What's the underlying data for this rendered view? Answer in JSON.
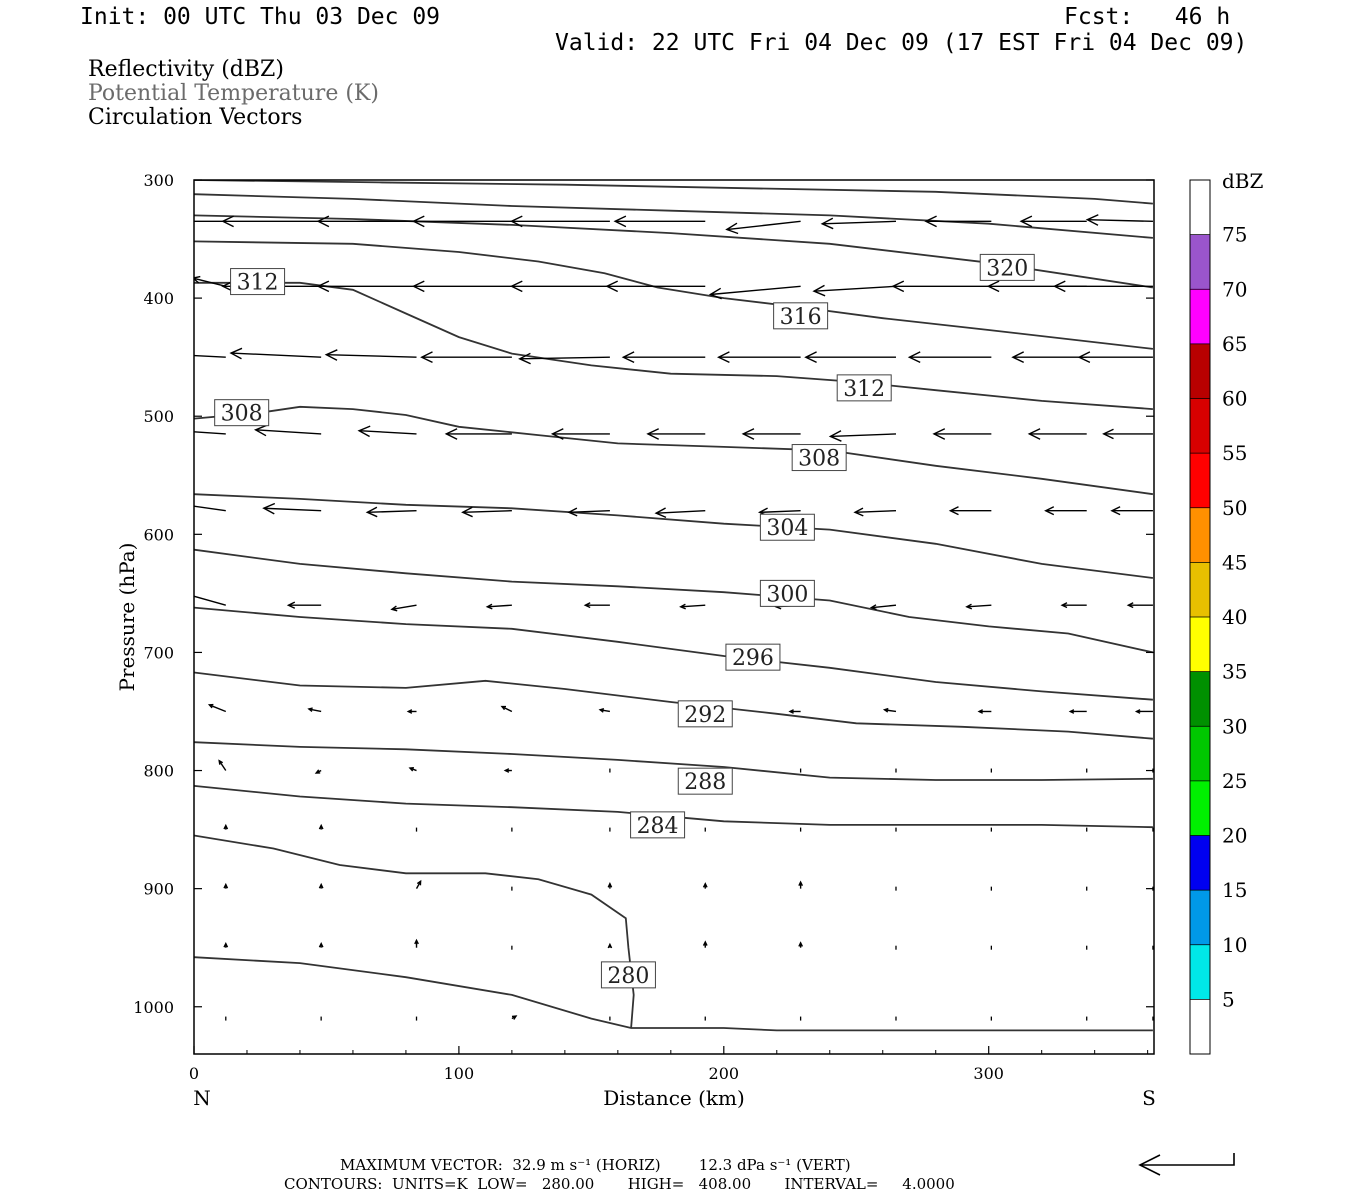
{
  "header": {
    "init": "Init: 00 UTC Thu 03 Dec 09",
    "fcst": "Fcst:   46 h",
    "valid": "Valid: 22 UTC Fri 04 Dec 09 (17 EST Fri 04 Dec 09)"
  },
  "fields": [
    "Reflectivity (dBZ)",
    "Potential Temperature (K)",
    "Circulation Vectors"
  ],
  "footer": {
    "vector_line": "MAXIMUM VECTOR:  32.9 m s⁻¹ (HORIZ)        12.3 dPa s⁻¹ (VERT)",
    "contour_line": "CONTOURS:  UNITS=K  LOW=   280.00       HIGH=   408.00       INTERVAL=     4.0000"
  },
  "chart_data": {
    "type": "contour",
    "xlabel": "Distance (km)",
    "ylabel": "Pressure (hPa)",
    "xlim": [
      0,
      362
    ],
    "ylim": [
      1040,
      300
    ],
    "x_ticks": [
      0,
      100,
      200,
      300
    ],
    "y_ticks": [
      300,
      400,
      500,
      600,
      700,
      800,
      900,
      1000
    ],
    "x_end_labels": {
      "left": "N",
      "right": "S"
    },
    "colorbar": {
      "unit": "dBZ",
      "levels": [
        5,
        10,
        15,
        20,
        25,
        30,
        35,
        40,
        45,
        50,
        55,
        60,
        65,
        70,
        75
      ],
      "colors": [
        "#ffffff",
        "#00e8e8",
        "#0099e8",
        "#0000f0",
        "#00f000",
        "#00c800",
        "#009000",
        "#ffff00",
        "#e8c000",
        "#ff9000",
        "#ff0000",
        "#d80000",
        "#b80000",
        "#ff00ff",
        "#9a55cc",
        "#ffffff"
      ]
    },
    "contours": [
      {
        "label": "280",
        "points": [
          [
            0,
            958
          ],
          [
            40,
            963
          ],
          [
            80,
            975
          ],
          [
            120,
            990
          ],
          [
            150,
            1010
          ],
          [
            165,
            1018
          ],
          [
            200,
            1018
          ],
          [
            220,
            1020
          ],
          [
            362,
            1020
          ]
        ]
      },
      {
        "label": "280",
        "points": [
          [
            165,
            1018
          ],
          [
            166,
            990
          ],
          [
            164,
            950
          ],
          [
            163,
            925
          ],
          [
            150,
            905
          ],
          [
            130,
            892
          ],
          [
            110,
            887
          ],
          [
            80,
            887
          ],
          [
            55,
            880
          ],
          [
            30,
            866
          ],
          [
            0,
            855
          ]
        ]
      },
      {
        "label": "284",
        "points": [
          [
            0,
            813
          ],
          [
            40,
            822
          ],
          [
            80,
            828
          ],
          [
            120,
            831
          ],
          [
            160,
            835
          ],
          [
            200,
            843
          ],
          [
            240,
            846
          ],
          [
            280,
            846
          ],
          [
            320,
            846
          ],
          [
            362,
            848
          ]
        ]
      },
      {
        "label": "288",
        "points": [
          [
            0,
            776
          ],
          [
            40,
            780
          ],
          [
            80,
            782
          ],
          [
            120,
            786
          ],
          [
            160,
            791
          ],
          [
            200,
            797
          ],
          [
            240,
            806
          ],
          [
            280,
            808
          ],
          [
            320,
            808
          ],
          [
            362,
            807
          ]
        ]
      },
      {
        "label": "292",
        "points": [
          [
            0,
            717
          ],
          [
            40,
            728
          ],
          [
            80,
            730
          ],
          [
            110,
            724
          ],
          [
            140,
            731
          ],
          [
            180,
            742
          ],
          [
            220,
            752
          ],
          [
            250,
            760
          ],
          [
            290,
            763
          ],
          [
            330,
            767
          ],
          [
            362,
            773
          ]
        ]
      },
      {
        "label": "296",
        "points": [
          [
            0,
            662
          ],
          [
            40,
            670
          ],
          [
            80,
            676
          ],
          [
            120,
            680
          ],
          [
            160,
            691
          ],
          [
            200,
            703
          ],
          [
            240,
            713
          ],
          [
            280,
            725
          ],
          [
            320,
            733
          ],
          [
            362,
            740
          ]
        ]
      },
      {
        "label": "300",
        "points": [
          [
            0,
            613
          ],
          [
            40,
            625
          ],
          [
            80,
            633
          ],
          [
            120,
            640
          ],
          [
            160,
            644
          ],
          [
            200,
            649
          ],
          [
            240,
            656
          ],
          [
            270,
            670
          ],
          [
            300,
            678
          ],
          [
            330,
            684
          ],
          [
            362,
            700
          ]
        ]
      },
      {
        "label": "304",
        "points": [
          [
            0,
            566
          ],
          [
            40,
            570
          ],
          [
            80,
            575
          ],
          [
            120,
            578
          ],
          [
            160,
            584
          ],
          [
            200,
            591
          ],
          [
            240,
            596
          ],
          [
            280,
            608
          ],
          [
            320,
            625
          ],
          [
            362,
            637
          ]
        ]
      },
      {
        "label": "308",
        "points": [
          [
            0,
            502
          ],
          [
            25,
            497
          ],
          [
            40,
            492
          ],
          [
            60,
            494
          ],
          [
            80,
            499
          ],
          [
            100,
            509
          ],
          [
            130,
            516
          ],
          [
            160,
            523
          ],
          [
            200,
            526
          ],
          [
            240,
            529
          ],
          [
            280,
            542
          ],
          [
            320,
            553
          ],
          [
            362,
            566
          ]
        ]
      },
      {
        "label": "312",
        "points": [
          [
            0,
            387
          ],
          [
            40,
            387
          ],
          [
            60,
            393
          ],
          [
            80,
            413
          ],
          [
            100,
            433
          ],
          [
            120,
            447
          ],
          [
            150,
            457
          ],
          [
            180,
            464
          ],
          [
            220,
            466
          ],
          [
            250,
            471
          ],
          [
            280,
            478
          ],
          [
            320,
            487
          ],
          [
            362,
            494
          ]
        ]
      },
      {
        "label": "316",
        "points": [
          [
            0,
            352
          ],
          [
            60,
            354
          ],
          [
            100,
            361
          ],
          [
            130,
            369
          ],
          [
            155,
            379
          ],
          [
            175,
            391
          ],
          [
            200,
            400
          ],
          [
            230,
            408
          ],
          [
            260,
            417
          ],
          [
            300,
            427
          ],
          [
            362,
            443
          ]
        ]
      },
      {
        "label": "320",
        "points": [
          [
            0,
            330
          ],
          [
            60,
            333
          ],
          [
            120,
            338
          ],
          [
            180,
            345
          ],
          [
            240,
            354
          ],
          [
            300,
            370
          ],
          [
            362,
            391
          ]
        ]
      },
      {
        "label": "",
        "points": [
          [
            0,
            312
          ],
          [
            60,
            316
          ],
          [
            120,
            322
          ],
          [
            180,
            326
          ],
          [
            240,
            330
          ],
          [
            300,
            337
          ],
          [
            362,
            349
          ]
        ]
      },
      {
        "label": "",
        "points": [
          [
            0,
            300
          ],
          [
            70,
            302
          ],
          [
            140,
            304
          ],
          [
            210,
            307
          ],
          [
            280,
            310
          ],
          [
            340,
            316
          ],
          [
            362,
            320
          ]
        ]
      }
    ],
    "contour_labels": [
      {
        "text": "312",
        "x": 24,
        "p": 386
      },
      {
        "text": "316",
        "x": 229,
        "p": 415
      },
      {
        "text": "320",
        "x": 307,
        "p": 374
      },
      {
        "text": "312",
        "x": 253,
        "p": 476
      },
      {
        "text": "308",
        "x": 18,
        "p": 497
      },
      {
        "text": "308",
        "x": 236,
        "p": 535
      },
      {
        "text": "304",
        "x": 224,
        "p": 594
      },
      {
        "text": "300",
        "x": 224,
        "p": 650
      },
      {
        "text": "296",
        "x": 211,
        "p": 704
      },
      {
        "text": "292",
        "x": 193,
        "p": 752
      },
      {
        "text": "288",
        "x": 193,
        "p": 809
      },
      {
        "text": "284",
        "x": 175,
        "p": 846
      },
      {
        "text": "280",
        "x": 164,
        "p": 973
      }
    ],
    "vector_rows": [
      {
        "p": 335,
        "u": [
          -12,
          -12,
          -12,
          -12,
          -12,
          -11,
          -9,
          -9,
          -8,
          -8,
          -8
        ],
        "w": [
          0,
          0,
          0,
          0,
          0,
          0,
          -1,
          -0.3,
          0,
          0,
          0.2
        ]
      },
      {
        "p": 390,
        "u": [
          -4,
          -12,
          -12,
          -12,
          -12,
          -12,
          -11,
          -10,
          -12,
          -12,
          -12
        ],
        "w": [
          1,
          0,
          0,
          0,
          0,
          0,
          -1,
          -0.6,
          0,
          0,
          0
        ]
      },
      {
        "p": 450,
        "u": [
          -10,
          -11,
          -11,
          -11,
          -11,
          -10,
          -10,
          -11,
          -10,
          -9,
          -9
        ],
        "w": [
          0.5,
          0.5,
          0.3,
          0,
          -0.2,
          0,
          0,
          0,
          0,
          0,
          0
        ]
      },
      {
        "p": 515,
        "u": [
          -9,
          -8,
          -7,
          -8,
          -7,
          -7,
          -7,
          -8,
          -7,
          -7,
          -6
        ],
        "w": [
          0.6,
          0.5,
          0.4,
          0,
          0,
          0,
          0,
          -0.3,
          0,
          0,
          0
        ]
      },
      {
        "p": 580,
        "u": [
          -7,
          -7,
          -6,
          -6,
          -5,
          -6,
          -5,
          -5,
          -5,
          -5,
          -5
        ],
        "w": [
          1,
          0.3,
          -0.2,
          -0.2,
          -0.2,
          -0.3,
          -0.2,
          -0.2,
          0,
          0,
          0
        ]
      },
      {
        "p": 660,
        "u": [
          -5,
          -4,
          -3,
          -3,
          -3,
          -3,
          -3,
          -3,
          -3,
          -3,
          -3
        ],
        "w": [
          1.4,
          0,
          -0.5,
          -0.2,
          0,
          -0.2,
          -0.2,
          -0.3,
          -0.2,
          0,
          0
        ]
      },
      {
        "p": 750,
        "u": [
          -2,
          -1.5,
          -1,
          -1.2,
          -1.2,
          -1.3,
          -1.3,
          -1.4,
          -1.5,
          -2,
          -2
        ],
        "w": [
          0.8,
          0.3,
          0,
          0.6,
          0.2,
          0,
          0,
          0.2,
          0,
          0,
          0
        ]
      },
      {
        "p": 800,
        "u": [
          -0.8,
          -0.6,
          -0.8,
          -0.8,
          0,
          0,
          0,
          0,
          0,
          0,
          0
        ],
        "w": [
          1.2,
          -0.3,
          0.3,
          0,
          0,
          0,
          0,
          0,
          0,
          0,
          0
        ]
      },
      {
        "p": 850,
        "u": [
          0,
          0,
          0,
          0,
          0,
          0,
          0,
          0,
          0,
          0,
          0
        ],
        "w": [
          0.5,
          0.5,
          0,
          0,
          0,
          0,
          0,
          0,
          0,
          0,
          0
        ]
      },
      {
        "p": 900,
        "u": [
          0,
          0,
          0.5,
          0,
          0,
          0,
          0,
          0,
          0,
          0,
          0
        ],
        "w": [
          0.5,
          0.5,
          0.9,
          0.2,
          0.6,
          0.6,
          0.8,
          0.3,
          0.3,
          0.2,
          0
        ]
      },
      {
        "p": 950,
        "u": [
          0,
          0,
          0,
          0,
          0,
          0,
          0,
          0,
          0,
          0,
          0
        ],
        "w": [
          0.5,
          0.5,
          0.9,
          0.3,
          0.4,
          0.7,
          0.6,
          0.3,
          0.3,
          0.2,
          0
        ]
      },
      {
        "p": 1010,
        "u": [
          0,
          0,
          0.3,
          0.5,
          0,
          0,
          0,
          0,
          0,
          0,
          0
        ],
        "w": [
          0.3,
          0.3,
          0,
          0.3,
          0.3,
          0.3,
          0.3,
          0.3,
          0.3,
          0,
          0
        ]
      }
    ],
    "vector_x": [
      12,
      48,
      84,
      120,
      157,
      193,
      229,
      265,
      301,
      337,
      362
    ]
  }
}
